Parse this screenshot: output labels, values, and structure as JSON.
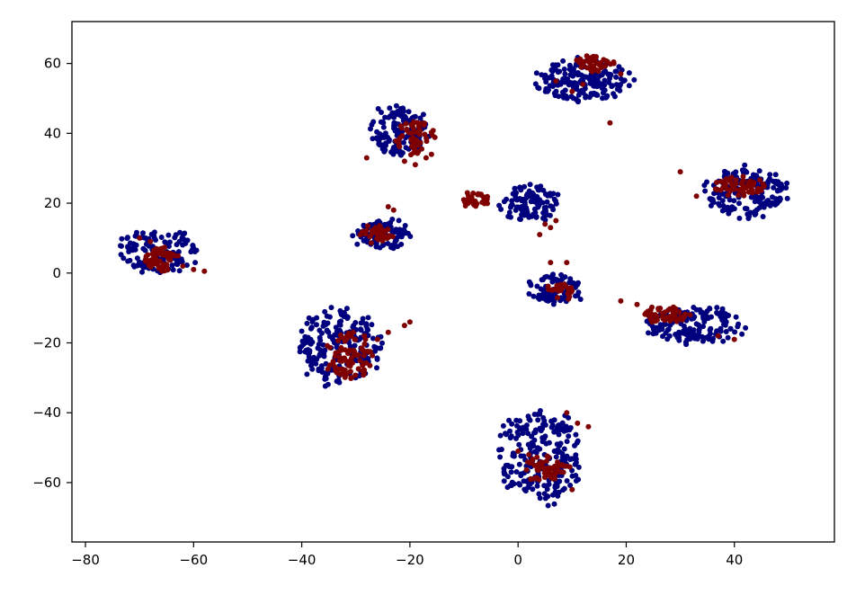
{
  "chart_data": {
    "type": "scatter",
    "title": "",
    "xlabel": "",
    "ylabel": "",
    "xlim": [
      -82.5,
      58.5
    ],
    "ylim": [
      -77,
      72
    ],
    "xticks": [
      -80,
      -60,
      -40,
      -20,
      0,
      20,
      40
    ],
    "yticks": [
      -60,
      -40,
      -20,
      0,
      20,
      40,
      60
    ],
    "xtick_labels": [
      "−80",
      "−60",
      "−40",
      "−20",
      "0",
      "20",
      "40"
    ],
    "ytick_labels": [
      "−60",
      "−40",
      "−20",
      "0",
      "20",
      "40",
      "60"
    ],
    "grid": false,
    "legend": "none",
    "colors": {
      "blue": "#00007f",
      "red": "#7f0000"
    },
    "clusters": [
      {
        "blue": {
          "cx": -66,
          "cy": 6,
          "rx": 9,
          "ry": 7,
          "n": 130
        },
        "red": {
          "cx": -66,
          "cy": 4,
          "rx": 3.5,
          "ry": 4,
          "n": 70
        },
        "red_tail": [
          [
            -70,
            10
          ],
          [
            -68,
            9
          ],
          [
            -62,
            2
          ],
          [
            -60,
            1
          ],
          [
            -58,
            0.5
          ]
        ]
      },
      {
        "blue": {
          "cx": -22,
          "cy": 41,
          "rx": 6,
          "ry": 8,
          "n": 140
        },
        "red": {
          "cx": -19,
          "cy": 39,
          "rx": 4,
          "ry": 6,
          "n": 55
        },
        "red_tail": [
          [
            -21,
            32
          ],
          [
            -19,
            31
          ],
          [
            -17,
            33
          ],
          [
            -16,
            34
          ],
          [
            -28,
            33
          ]
        ]
      },
      {
        "blue": {
          "cx": -25,
          "cy": 11,
          "rx": 6,
          "ry": 5,
          "n": 100
        },
        "red": {
          "cx": -26,
          "cy": 11,
          "rx": 3.5,
          "ry": 3,
          "n": 35
        },
        "red_tail": [
          [
            -24,
            19
          ],
          [
            -23,
            18
          ]
        ]
      },
      {
        "blue": {
          "cx": -33,
          "cy": -21,
          "rx": 9,
          "ry": 12,
          "n": 200
        },
        "red": {
          "cx": -31,
          "cy": -24,
          "rx": 5,
          "ry": 8,
          "n": 80
        },
        "red_tail": [
          [
            -20,
            -14
          ],
          [
            -21,
            -15
          ],
          [
            -24,
            -17
          ],
          [
            -26,
            -19
          ]
        ]
      },
      {
        "blue": {
          "cx": 2,
          "cy": 20,
          "rx": 6,
          "ry": 6,
          "n": 110
        },
        "red": {
          "cx": -8,
          "cy": 21,
          "rx": 3,
          "ry": 2.5,
          "n": 40
        },
        "red_tail": [
          [
            5,
            14
          ],
          [
            6,
            13
          ],
          [
            7,
            15
          ],
          [
            4,
            11
          ]
        ]
      },
      {
        "blue": {
          "cx": 12,
          "cy": 55,
          "rx": 10,
          "ry": 7,
          "n": 180
        },
        "red": {
          "cx": 14,
          "cy": 60,
          "rx": 4,
          "ry": 2.5,
          "n": 40
        },
        "red_tail": [
          [
            7,
            55
          ],
          [
            10,
            52
          ],
          [
            12,
            54
          ],
          [
            17,
            43
          ],
          [
            19,
            57
          ]
        ]
      },
      {
        "blue": {
          "cx": 7,
          "cy": -5,
          "rx": 6,
          "ry": 5,
          "n": 90
        },
        "red": {
          "cx": 8,
          "cy": -5,
          "rx": 3,
          "ry": 3,
          "n": 25
        },
        "red_tail": [
          [
            6,
            3
          ],
          [
            9,
            3
          ]
        ]
      },
      {
        "blue": {
          "cx": 42,
          "cy": 23,
          "rx": 9,
          "ry": 8,
          "n": 170
        },
        "red": {
          "cx": 41,
          "cy": 25,
          "rx": 5,
          "ry": 3.5,
          "n": 55
        },
        "red_tail": [
          [
            30,
            29
          ],
          [
            33,
            22
          ]
        ]
      },
      {
        "blue": {
          "cx": 33,
          "cy": -15,
          "rx": 10,
          "ry": 6,
          "n": 150
        },
        "red": {
          "cx": 27,
          "cy": -12,
          "rx": 5,
          "ry": 3,
          "n": 55
        },
        "red_tail": [
          [
            19,
            -8
          ],
          [
            22,
            -9
          ],
          [
            24,
            -11
          ],
          [
            37,
            -18
          ],
          [
            40,
            -19
          ]
        ]
      },
      {
        "blue": {
          "cx": 4,
          "cy": -52,
          "rx": 9,
          "ry": 15,
          "n": 230
        },
        "red": {
          "cx": 5,
          "cy": -56,
          "rx": 5,
          "ry": 4,
          "n": 60
        },
        "red_tail": [
          [
            9,
            -40
          ],
          [
            11,
            -43
          ],
          [
            13,
            -44
          ],
          [
            10,
            -62
          ],
          [
            2,
            -52
          ],
          [
            0,
            -51
          ]
        ]
      }
    ]
  }
}
